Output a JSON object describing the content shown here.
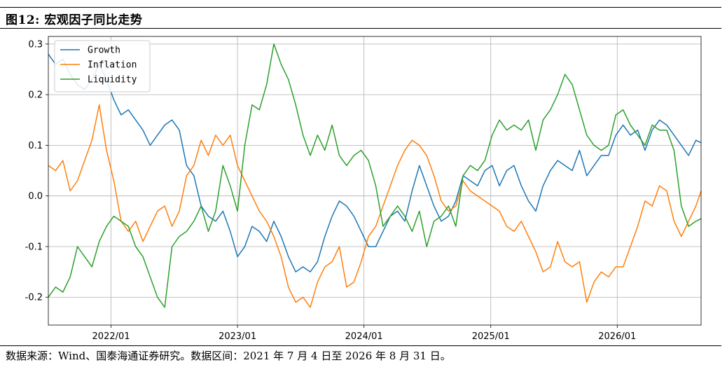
{
  "figure_title": "图12:  宏观因子同比走势",
  "source_note": "数据来源：Wind、国泰海通证券研究。数据区间：2021 年 7 月 4 日至 2026 年 8 月 31 日。",
  "chart_data": {
    "type": "line",
    "title": "",
    "xlabel": "",
    "ylabel": "",
    "x_start": "2021-07-04",
    "x_end": "2026-08-31",
    "x_tick_labels": [
      "2022/01",
      "2023/01",
      "2024/01",
      "2025/01",
      "2026/01"
    ],
    "x_tick_dates": [
      "2022-01-01",
      "2023-01-01",
      "2024-01-01",
      "2025-01-01",
      "2026-01-01"
    ],
    "ylim": [
      -0.255,
      0.315
    ],
    "y_ticks": [
      -0.2,
      -0.1,
      0.0,
      0.1,
      0.2,
      0.3
    ],
    "y_tick_labels": [
      "-0.2",
      "-0.1",
      "0.0",
      "0.1",
      "0.2",
      "0.3"
    ],
    "grid": true,
    "legend_position": "top-left",
    "series": [
      {
        "name": "Growth",
        "color": "#1f77b4",
        "points": [
          [
            "2021-07-04",
            0.28
          ],
          [
            "2021-07-25",
            0.26
          ],
          [
            "2021-08-15",
            0.27
          ],
          [
            "2021-09-05",
            0.24
          ],
          [
            "2021-09-26",
            0.22
          ],
          [
            "2021-10-17",
            0.21
          ],
          [
            "2021-11-07",
            0.23
          ],
          [
            "2021-11-28",
            0.26
          ],
          [
            "2021-12-19",
            0.23
          ],
          [
            "2022-01-09",
            0.19
          ],
          [
            "2022-01-30",
            0.16
          ],
          [
            "2022-02-20",
            0.17
          ],
          [
            "2022-03-13",
            0.15
          ],
          [
            "2022-04-03",
            0.13
          ],
          [
            "2022-04-24",
            0.1
          ],
          [
            "2022-05-15",
            0.12
          ],
          [
            "2022-06-05",
            0.14
          ],
          [
            "2022-06-26",
            0.15
          ],
          [
            "2022-07-17",
            0.13
          ],
          [
            "2022-08-07",
            0.06
          ],
          [
            "2022-08-28",
            0.04
          ],
          [
            "2022-09-18",
            -0.02
          ],
          [
            "2022-10-09",
            -0.04
          ],
          [
            "2022-10-30",
            -0.05
          ],
          [
            "2022-11-20",
            -0.03
          ],
          [
            "2022-12-11",
            -0.07
          ],
          [
            "2023-01-01",
            -0.12
          ],
          [
            "2023-01-22",
            -0.1
          ],
          [
            "2023-02-12",
            -0.06
          ],
          [
            "2023-03-05",
            -0.07
          ],
          [
            "2023-03-26",
            -0.09
          ],
          [
            "2023-04-16",
            -0.05
          ],
          [
            "2023-05-07",
            -0.08
          ],
          [
            "2023-05-28",
            -0.12
          ],
          [
            "2023-06-18",
            -0.15
          ],
          [
            "2023-07-09",
            -0.14
          ],
          [
            "2023-07-30",
            -0.15
          ],
          [
            "2023-08-20",
            -0.13
          ],
          [
            "2023-09-10",
            -0.08
          ],
          [
            "2023-10-01",
            -0.04
          ],
          [
            "2023-10-22",
            -0.01
          ],
          [
            "2023-11-12",
            -0.02
          ],
          [
            "2023-12-03",
            -0.04
          ],
          [
            "2023-12-24",
            -0.07
          ],
          [
            "2024-01-14",
            -0.1
          ],
          [
            "2024-02-04",
            -0.1
          ],
          [
            "2024-02-25",
            -0.07
          ],
          [
            "2024-03-17",
            -0.04
          ],
          [
            "2024-04-07",
            -0.03
          ],
          [
            "2024-04-28",
            -0.05
          ],
          [
            "2024-05-19",
            0.01
          ],
          [
            "2024-06-09",
            0.06
          ],
          [
            "2024-06-30",
            0.02
          ],
          [
            "2024-07-21",
            -0.02
          ],
          [
            "2024-08-11",
            -0.05
          ],
          [
            "2024-09-01",
            -0.04
          ],
          [
            "2024-09-22",
            -0.01
          ],
          [
            "2024-10-13",
            0.04
          ],
          [
            "2024-11-03",
            0.03
          ],
          [
            "2024-11-24",
            0.02
          ],
          [
            "2024-12-15",
            0.05
          ],
          [
            "2025-01-05",
            0.06
          ],
          [
            "2025-01-26",
            0.02
          ],
          [
            "2025-02-16",
            0.05
          ],
          [
            "2025-03-09",
            0.06
          ],
          [
            "2025-03-30",
            0.02
          ],
          [
            "2025-04-20",
            -0.01
          ],
          [
            "2025-05-11",
            -0.03
          ],
          [
            "2025-06-01",
            0.02
          ],
          [
            "2025-06-22",
            0.05
          ],
          [
            "2025-07-13",
            0.07
          ],
          [
            "2025-08-03",
            0.06
          ],
          [
            "2025-08-24",
            0.05
          ],
          [
            "2025-09-14",
            0.09
          ],
          [
            "2025-10-05",
            0.04
          ],
          [
            "2025-10-26",
            0.06
          ],
          [
            "2025-11-16",
            0.08
          ],
          [
            "2025-12-07",
            0.08
          ],
          [
            "2025-12-28",
            0.12
          ],
          [
            "2026-01-18",
            0.14
          ],
          [
            "2026-02-08",
            0.12
          ],
          [
            "2026-03-01",
            0.13
          ],
          [
            "2026-03-22",
            0.09
          ],
          [
            "2026-04-12",
            0.13
          ],
          [
            "2026-05-03",
            0.15
          ],
          [
            "2026-05-24",
            0.14
          ],
          [
            "2026-06-14",
            0.12
          ],
          [
            "2026-07-05",
            0.1
          ],
          [
            "2026-07-26",
            0.08
          ],
          [
            "2026-08-16",
            0.11
          ],
          [
            "2026-08-31",
            0.105
          ]
        ]
      },
      {
        "name": "Inflation",
        "color": "#ff7f0e",
        "points": [
          [
            "2021-07-04",
            0.06
          ],
          [
            "2021-07-25",
            0.05
          ],
          [
            "2021-08-15",
            0.07
          ],
          [
            "2021-09-05",
            0.01
          ],
          [
            "2021-09-26",
            0.03
          ],
          [
            "2021-10-17",
            0.07
          ],
          [
            "2021-11-07",
            0.11
          ],
          [
            "2021-11-28",
            0.18
          ],
          [
            "2021-12-19",
            0.09
          ],
          [
            "2022-01-09",
            0.03
          ],
          [
            "2022-01-30",
            -0.05
          ],
          [
            "2022-02-20",
            -0.07
          ],
          [
            "2022-03-13",
            -0.05
          ],
          [
            "2022-04-03",
            -0.09
          ],
          [
            "2022-04-24",
            -0.06
          ],
          [
            "2022-05-15",
            -0.03
          ],
          [
            "2022-06-05",
            -0.02
          ],
          [
            "2022-06-26",
            -0.06
          ],
          [
            "2022-07-17",
            -0.03
          ],
          [
            "2022-08-07",
            0.04
          ],
          [
            "2022-08-28",
            0.06
          ],
          [
            "2022-09-18",
            0.11
          ],
          [
            "2022-10-09",
            0.08
          ],
          [
            "2022-10-30",
            0.12
          ],
          [
            "2022-11-20",
            0.1
          ],
          [
            "2022-12-11",
            0.12
          ],
          [
            "2023-01-01",
            0.06
          ],
          [
            "2023-01-22",
            0.03
          ],
          [
            "2023-02-12",
            0.0
          ],
          [
            "2023-03-05",
            -0.03
          ],
          [
            "2023-03-26",
            -0.05
          ],
          [
            "2023-04-16",
            -0.08
          ],
          [
            "2023-05-07",
            -0.12
          ],
          [
            "2023-05-28",
            -0.18
          ],
          [
            "2023-06-18",
            -0.21
          ],
          [
            "2023-07-09",
            -0.2
          ],
          [
            "2023-07-30",
            -0.22
          ],
          [
            "2023-08-20",
            -0.17
          ],
          [
            "2023-09-10",
            -0.14
          ],
          [
            "2023-10-01",
            -0.13
          ],
          [
            "2023-10-22",
            -0.1
          ],
          [
            "2023-11-12",
            -0.18
          ],
          [
            "2023-12-03",
            -0.17
          ],
          [
            "2023-12-24",
            -0.13
          ],
          [
            "2024-01-14",
            -0.08
          ],
          [
            "2024-02-04",
            -0.06
          ],
          [
            "2024-02-25",
            -0.02
          ],
          [
            "2024-03-17",
            0.02
          ],
          [
            "2024-04-07",
            0.06
          ],
          [
            "2024-04-28",
            0.09
          ],
          [
            "2024-05-19",
            0.11
          ],
          [
            "2024-06-09",
            0.1
          ],
          [
            "2024-06-30",
            0.08
          ],
          [
            "2024-07-21",
            0.04
          ],
          [
            "2024-08-11",
            -0.01
          ],
          [
            "2024-09-01",
            -0.03
          ],
          [
            "2024-09-22",
            -0.02
          ],
          [
            "2024-10-13",
            0.03
          ],
          [
            "2024-11-03",
            0.01
          ],
          [
            "2024-11-24",
            0.0
          ],
          [
            "2024-12-15",
            -0.01
          ],
          [
            "2025-01-05",
            -0.02
          ],
          [
            "2025-01-26",
            -0.03
          ],
          [
            "2025-02-16",
            -0.06
          ],
          [
            "2025-03-09",
            -0.07
          ],
          [
            "2025-03-30",
            -0.05
          ],
          [
            "2025-04-20",
            -0.08
          ],
          [
            "2025-05-11",
            -0.11
          ],
          [
            "2025-06-01",
            -0.15
          ],
          [
            "2025-06-22",
            -0.14
          ],
          [
            "2025-07-13",
            -0.09
          ],
          [
            "2025-08-03",
            -0.13
          ],
          [
            "2025-08-24",
            -0.14
          ],
          [
            "2025-09-14",
            -0.13
          ],
          [
            "2025-10-05",
            -0.21
          ],
          [
            "2025-10-26",
            -0.17
          ],
          [
            "2025-11-16",
            -0.15
          ],
          [
            "2025-12-07",
            -0.16
          ],
          [
            "2025-12-28",
            -0.14
          ],
          [
            "2026-01-18",
            -0.14
          ],
          [
            "2026-02-08",
            -0.1
          ],
          [
            "2026-03-01",
            -0.06
          ],
          [
            "2026-03-22",
            -0.01
          ],
          [
            "2026-04-12",
            -0.02
          ],
          [
            "2026-05-03",
            0.02
          ],
          [
            "2026-05-24",
            0.01
          ],
          [
            "2026-06-14",
            -0.05
          ],
          [
            "2026-07-05",
            -0.08
          ],
          [
            "2026-07-26",
            -0.05
          ],
          [
            "2026-08-16",
            -0.02
          ],
          [
            "2026-08-31",
            0.01
          ]
        ]
      },
      {
        "name": "Liquidity",
        "color": "#2ca02c",
        "points": [
          [
            "2021-07-04",
            -0.2
          ],
          [
            "2021-07-25",
            -0.18
          ],
          [
            "2021-08-15",
            -0.19
          ],
          [
            "2021-09-05",
            -0.16
          ],
          [
            "2021-09-26",
            -0.1
          ],
          [
            "2021-10-17",
            -0.12
          ],
          [
            "2021-11-07",
            -0.14
          ],
          [
            "2021-11-28",
            -0.09
          ],
          [
            "2021-12-19",
            -0.06
          ],
          [
            "2022-01-09",
            -0.04
          ],
          [
            "2022-01-30",
            -0.05
          ],
          [
            "2022-02-20",
            -0.06
          ],
          [
            "2022-03-13",
            -0.1
          ],
          [
            "2022-04-03",
            -0.12
          ],
          [
            "2022-04-24",
            -0.16
          ],
          [
            "2022-05-15",
            -0.2
          ],
          [
            "2022-06-05",
            -0.22
          ],
          [
            "2022-06-26",
            -0.1
          ],
          [
            "2022-07-17",
            -0.08
          ],
          [
            "2022-08-07",
            -0.07
          ],
          [
            "2022-08-28",
            -0.05
          ],
          [
            "2022-09-18",
            -0.02
          ],
          [
            "2022-10-09",
            -0.07
          ],
          [
            "2022-10-30",
            -0.03
          ],
          [
            "2022-11-20",
            0.06
          ],
          [
            "2022-12-11",
            0.02
          ],
          [
            "2023-01-01",
            -0.03
          ],
          [
            "2023-01-22",
            0.1
          ],
          [
            "2023-02-12",
            0.18
          ],
          [
            "2023-03-05",
            0.17
          ],
          [
            "2023-03-26",
            0.22
          ],
          [
            "2023-04-16",
            0.3
          ],
          [
            "2023-05-07",
            0.26
          ],
          [
            "2023-05-28",
            0.23
          ],
          [
            "2023-06-18",
            0.18
          ],
          [
            "2023-07-09",
            0.12
          ],
          [
            "2023-07-30",
            0.08
          ],
          [
            "2023-08-20",
            0.12
          ],
          [
            "2023-09-10",
            0.09
          ],
          [
            "2023-10-01",
            0.14
          ],
          [
            "2023-10-22",
            0.08
          ],
          [
            "2023-11-12",
            0.06
          ],
          [
            "2023-12-03",
            0.08
          ],
          [
            "2023-12-24",
            0.09
          ],
          [
            "2024-01-14",
            0.07
          ],
          [
            "2024-02-04",
            0.02
          ],
          [
            "2024-02-25",
            -0.06
          ],
          [
            "2024-03-17",
            -0.04
          ],
          [
            "2024-04-07",
            -0.02
          ],
          [
            "2024-04-28",
            -0.04
          ],
          [
            "2024-05-19",
            -0.07
          ],
          [
            "2024-06-09",
            -0.03
          ],
          [
            "2024-06-30",
            -0.1
          ],
          [
            "2024-07-21",
            -0.05
          ],
          [
            "2024-08-11",
            -0.04
          ],
          [
            "2024-09-01",
            -0.02
          ],
          [
            "2024-09-22",
            -0.06
          ],
          [
            "2024-10-13",
            0.04
          ],
          [
            "2024-11-03",
            0.06
          ],
          [
            "2024-11-24",
            0.05
          ],
          [
            "2024-12-15",
            0.07
          ],
          [
            "2025-01-05",
            0.12
          ],
          [
            "2025-01-26",
            0.15
          ],
          [
            "2025-02-16",
            0.13
          ],
          [
            "2025-03-09",
            0.14
          ],
          [
            "2025-03-30",
            0.13
          ],
          [
            "2025-04-20",
            0.15
          ],
          [
            "2025-05-11",
            0.09
          ],
          [
            "2025-06-01",
            0.15
          ],
          [
            "2025-06-22",
            0.17
          ],
          [
            "2025-07-13",
            0.2
          ],
          [
            "2025-08-03",
            0.24
          ],
          [
            "2025-08-24",
            0.22
          ],
          [
            "2025-09-14",
            0.17
          ],
          [
            "2025-10-05",
            0.12
          ],
          [
            "2025-10-26",
            0.1
          ],
          [
            "2025-11-16",
            0.09
          ],
          [
            "2025-12-07",
            0.1
          ],
          [
            "2025-12-28",
            0.16
          ],
          [
            "2026-01-18",
            0.17
          ],
          [
            "2026-02-08",
            0.14
          ],
          [
            "2026-03-01",
            0.12
          ],
          [
            "2026-03-22",
            0.1
          ],
          [
            "2026-04-12",
            0.14
          ],
          [
            "2026-05-03",
            0.13
          ],
          [
            "2026-05-24",
            0.13
          ],
          [
            "2026-06-14",
            0.09
          ],
          [
            "2026-07-05",
            -0.02
          ],
          [
            "2026-07-26",
            -0.06
          ],
          [
            "2026-08-16",
            -0.05
          ],
          [
            "2026-08-31",
            -0.045
          ]
        ]
      }
    ]
  }
}
